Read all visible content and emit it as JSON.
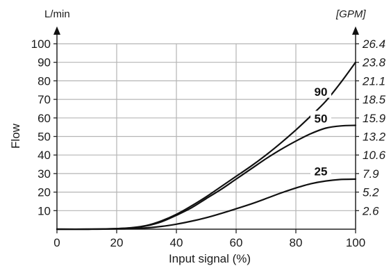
{
  "chart_data": {
    "type": "line",
    "xlabel": "Input signal (%)",
    "ylabel": "Flow",
    "y_unit_left": "L/min",
    "y_unit_right": "[GPM]",
    "xlim": [
      0,
      100
    ],
    "ylim": [
      0,
      100
    ],
    "x_ticks": [
      "0",
      "20",
      "40",
      "60",
      "80",
      "100"
    ],
    "y_ticks_left": [
      "10",
      "20",
      "30",
      "40",
      "50",
      "60",
      "70",
      "80",
      "90",
      "100"
    ],
    "y_ticks_right": [
      "2.6",
      "5.2",
      "7.9",
      "10.6",
      "13.2",
      "15.9",
      "18.5",
      "21.1",
      "23.8",
      "26.4"
    ],
    "grid": true,
    "series": [
      {
        "name": "90",
        "x": [
          0,
          10,
          20,
          25,
          30,
          35,
          40,
          45,
          50,
          55,
          60,
          65,
          70,
          75,
          80,
          85,
          90,
          95,
          100
        ],
        "y": [
          0,
          0,
          0.3,
          0.8,
          2,
          4.5,
          8,
          12.5,
          17.5,
          23,
          28.5,
          34,
          40,
          46.5,
          53.5,
          61,
          69,
          79,
          90
        ]
      },
      {
        "name": "50",
        "x": [
          0,
          10,
          20,
          25,
          30,
          35,
          40,
          45,
          50,
          55,
          60,
          65,
          70,
          75,
          80,
          85,
          90,
          95,
          100
        ],
        "y": [
          0,
          0,
          0.3,
          0.7,
          1.8,
          4,
          7.5,
          11.5,
          16.5,
          21.5,
          27,
          32.5,
          38,
          43,
          47.5,
          51.5,
          54.5,
          55.7,
          56
        ]
      },
      {
        "name": "25",
        "x": [
          0,
          10,
          20,
          25,
          30,
          35,
          40,
          45,
          50,
          55,
          60,
          65,
          70,
          75,
          80,
          85,
          90,
          95,
          100
        ],
        "y": [
          0,
          0,
          0.1,
          0.3,
          0.7,
          1.5,
          2.7,
          4.3,
          6.2,
          8.5,
          11,
          13.6,
          16.5,
          19.5,
          22.2,
          24.5,
          26,
          26.8,
          27
        ]
      }
    ]
  }
}
